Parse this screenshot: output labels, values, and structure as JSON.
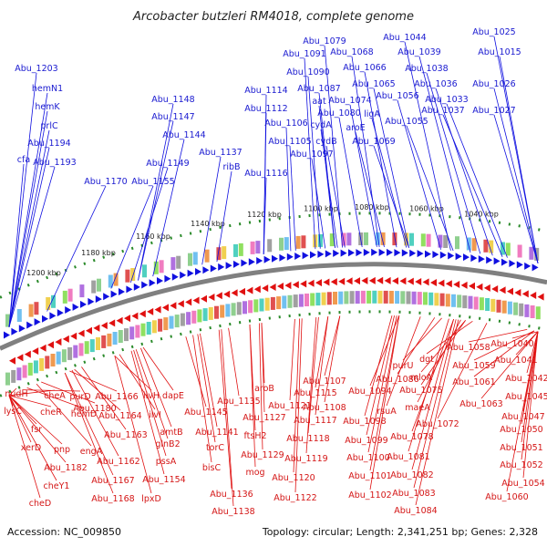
{
  "title": "Arcobacter butzleri RM4018, complete genome",
  "footer": {
    "accession": "Accession: NC_009850",
    "summary": "Topology: circular; Length: 2,341,251 bp; Genes: 2,328"
  },
  "colors": {
    "forward": "#1010e0",
    "reverse": "#e01010",
    "ruler": "#2a8a2a",
    "backbone": "#808080"
  },
  "scale_labels": [
    "1200 kbp",
    "1180 kbp",
    "1160 kbp",
    "1140 kbp",
    "1120 kbp",
    "1100 kbp",
    "1080 kbp",
    "1060 kbp",
    "1040 kbp"
  ],
  "forward_genes": [
    "Abu_1203",
    "hemN1",
    "hemK",
    "prlC",
    "Abu_1194",
    "cfa",
    "Abu_1193",
    "Abu_1170",
    "Abu_1155",
    "Abu_1149",
    "Abu_1148",
    "Abu_1147",
    "Abu_1144",
    "Abu_1137",
    "ribB",
    "Abu_1116",
    "Abu_1114",
    "Abu_1112",
    "Abu_1106",
    "Abu_1105",
    "Abu_1097",
    "Abu_1091",
    "Abu_1090",
    "Abu_1087",
    "aat",
    "cydA",
    "cydB",
    "Abu_1079",
    "Abu_1068",
    "Abu_1080",
    "Abu_1074",
    "aroE",
    "Abu_1069",
    "Abu_1066",
    "Abu_1065",
    "ligA",
    "Abu_1056",
    "Abu_1055",
    "Abu_1044",
    "Abu_1039",
    "Abu_1038",
    "Abu_1036",
    "Abu_1033",
    "Abu_1037",
    "Abu_1025",
    "Abu_1015",
    "Abu_1026",
    "Abu_1027"
  ],
  "reverse_genes": [
    "nudH",
    "lysC",
    "fsr",
    "xerD",
    "cheA",
    "cheR",
    "pnp",
    "Abu_1182",
    "cheY1",
    "cheD",
    "purD",
    "Abu_1180",
    "hemD",
    "engA",
    "Abu_1166",
    "Abu_1164",
    "Abu_1163",
    "Abu_1162",
    "Abu_1167",
    "Abu_1168",
    "ilvH",
    "ilvI",
    "dapE",
    "amtB",
    "glnB2",
    "pssA",
    "Abu_1154",
    "lpxD",
    "Abu_1145",
    "Abu_1141",
    "torC",
    "bisC",
    "Abu_1135",
    "Abu_1136",
    "Abu_1138",
    "Abu_1127",
    "ftsH2",
    "Abu_1129",
    "mog",
    "aroB",
    "Abu_1121",
    "Abu_1120",
    "Abu_1122",
    "Abu_1115",
    "Abu_1117",
    "Abu_1118",
    "Abu_1119",
    "Abu_1107",
    "Abu_1108",
    "Abu_1094",
    "Abu_1098",
    "Abu_1099",
    "Abu_1100",
    "Abu_1101",
    "Abu_1102",
    "Abu_1086",
    "rsuA",
    "Abu_1081",
    "Abu_1082",
    "Abu_1083",
    "Abu_1084",
    "purU",
    "mloA",
    "Abu_1075",
    "dgt",
    "maeA",
    "Abu_1072",
    "Abu_1078",
    "Abu_1058",
    "Abu_1040",
    "Abu_1059",
    "Abu_1041",
    "Abu_1061",
    "Abu_1042",
    "Abu_1063",
    "Abu_1045",
    "Abu_1047",
    "Abu_1050",
    "Abu_1051",
    "Abu_1052",
    "Abu_1054",
    "Abu_1060"
  ]
}
